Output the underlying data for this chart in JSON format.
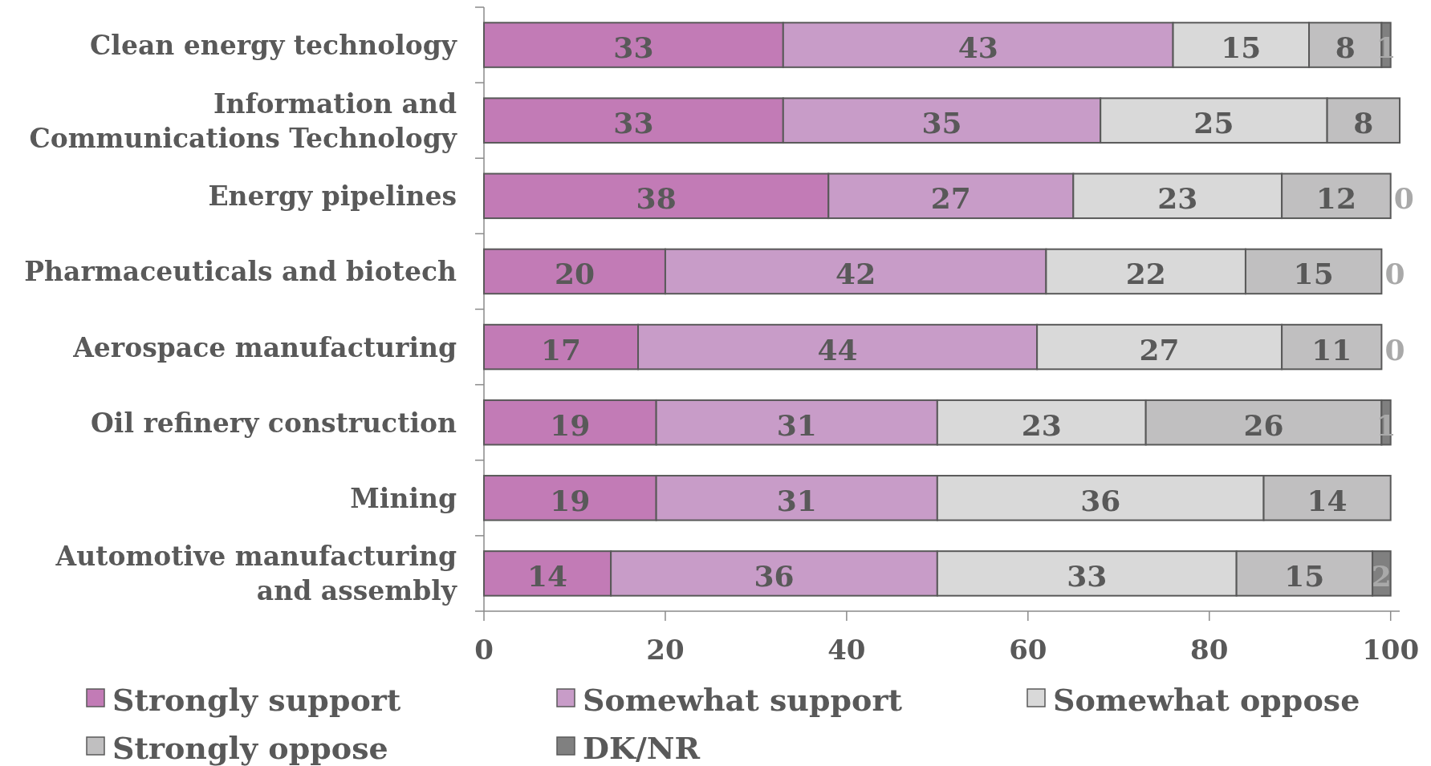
{
  "chart_data": {
    "type": "bar",
    "orientation": "horizontal",
    "stacked": true,
    "categories": [
      "Clean energy technology",
      "Information and Communications Technology",
      "Energy pipelines",
      "Pharmaceuticals and biotech",
      "Aerospace manufacturing",
      "Oil refinery construction",
      "Mining",
      "Automotive manufacturing and assembly"
    ],
    "series": [
      {
        "name": "Strongly support",
        "color": "#c27bb6",
        "values": [
          33,
          33,
          38,
          20,
          17,
          19,
          19,
          14
        ]
      },
      {
        "name": "Somewhat support",
        "color": "#c89cc8",
        "values": [
          43,
          35,
          27,
          42,
          44,
          31,
          31,
          36
        ]
      },
      {
        "name": "Somewhat oppose",
        "color": "#d9d9d9",
        "values": [
          15,
          25,
          23,
          22,
          27,
          23,
          36,
          33
        ]
      },
      {
        "name": "Strongly oppose",
        "color": "#c0bfc0",
        "values": [
          8,
          8,
          12,
          15,
          11,
          26,
          14,
          15
        ]
      },
      {
        "name": "DK/NR",
        "color": "#808080",
        "values": [
          1,
          null,
          0,
          0,
          0,
          1,
          null,
          2
        ]
      }
    ],
    "xlim": [
      0,
      101
    ],
    "xticks": [
      0,
      20,
      40,
      60,
      80,
      100
    ],
    "data_labels": true,
    "legend": "bottom"
  }
}
